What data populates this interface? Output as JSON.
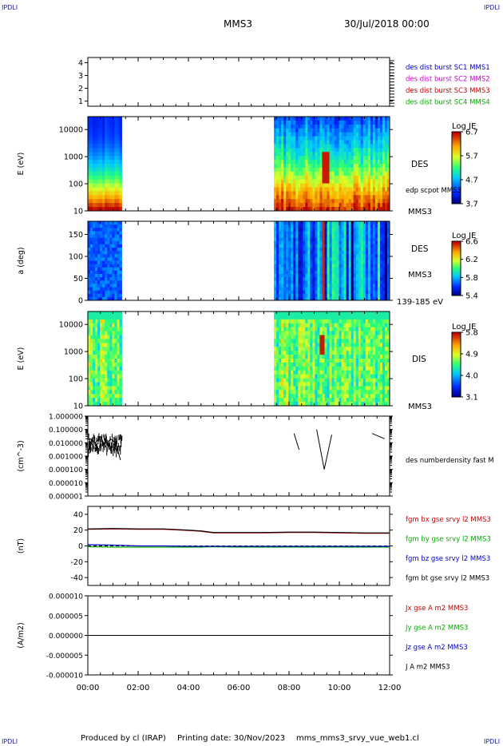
{
  "header": {
    "corner_label": "IPDLI",
    "spacecraft": "MMS3",
    "date": "30/Jul/2018 00:00"
  },
  "footer": {
    "produced_by": "Produced by cl (IRAP)",
    "printing_date": "Printing date: 30/Nov/2023",
    "file": "mms_mms3_srvy_vue_web1.cl"
  },
  "colors": {
    "red": "#cc0000",
    "magenta": "#cc00cc",
    "blue": "#0000cc",
    "green": "#00aa00",
    "black": "#000000"
  },
  "chart_data": [
    {
      "type": "line",
      "panel": "burst-availability",
      "yticks": [
        "4",
        "3",
        "2",
        "1"
      ],
      "ylim": [
        0.6,
        4.4
      ],
      "legend": [
        {
          "label": "des dist burst SC1 MMS1",
          "color": "#0000cc"
        },
        {
          "label": "des dist burst SC2 MMS2",
          "color": "#cc00cc"
        },
        {
          "label": "des dist burst SC3 MMS3",
          "color": "#cc0000"
        },
        {
          "label": "des dist burst SC4 MMS4",
          "color": "#00aa00"
        }
      ]
    },
    {
      "type": "heatmap",
      "panel": "des-energy",
      "ylabel": "E (eV)",
      "yticks": [
        "10000",
        "1000",
        "100",
        "10"
      ],
      "scale": "log",
      "ylim": [
        10,
        30000
      ],
      "data_intervals_hours": [
        [
          0,
          1.35
        ],
        [
          7.4,
          12
        ]
      ],
      "right_labels": [
        "DES",
        "edp scpot MMS3",
        "MMS3"
      ],
      "colorbar": {
        "title": "Log JE",
        "ticks": [
          "6.7",
          "5.7",
          "4.7",
          "3.7"
        ],
        "range": [
          3.7,
          6.7
        ]
      }
    },
    {
      "type": "heatmap",
      "panel": "des-pitch-angle",
      "ylabel": "a (deg)",
      "yticks": [
        "150",
        "100",
        "50",
        "0"
      ],
      "ylim": [
        0,
        180
      ],
      "data_intervals_hours": [
        [
          0,
          1.35
        ],
        [
          7.4,
          12
        ]
      ],
      "right_labels": [
        "DES",
        "MMS3",
        "139-185 eV"
      ],
      "colorbar": {
        "title": "Log JE",
        "ticks": [
          "6.6",
          "6.2",
          "5.8",
          "5.4"
        ],
        "range": [
          5.4,
          6.6
        ]
      }
    },
    {
      "type": "heatmap",
      "panel": "dis-energy",
      "ylabel": "E (eV)",
      "yticks": [
        "10000",
        "1000",
        "100",
        "10"
      ],
      "scale": "log",
      "ylim": [
        10,
        30000
      ],
      "data_intervals_hours": [
        [
          0,
          1.35
        ],
        [
          7.4,
          12
        ]
      ],
      "right_labels": [
        "DIS",
        "MMS3"
      ],
      "colorbar": {
        "title": "Log JE",
        "ticks": [
          "5.8",
          "4.9",
          "4.0",
          "3.1"
        ],
        "range": [
          3.1,
          5.8
        ]
      }
    },
    {
      "type": "line",
      "panel": "number-density",
      "ylabel": "(cm^-3)",
      "yticks": [
        "1.000000",
        "0.100000",
        "0.010000",
        "0.001000",
        "0.000100",
        "0.000010",
        "0.000001"
      ],
      "scale": "log",
      "ylim": [
        1e-06,
        1
      ],
      "legend": [
        {
          "label": "des numberdensity fast M",
          "color": "#000000"
        }
      ],
      "series": [
        {
          "name": "des numberdensity fast M",
          "x": [
            0.1,
            0.3,
            0.5,
            0.7,
            0.9,
            1.1,
            1.3,
            7.5,
            8.2,
            8.4,
            9.1,
            9.4,
            9.7,
            10.6,
            11.3,
            11.8
          ],
          "y": [
            0.02,
            0.01,
            0.03,
            0.005,
            0.02,
            0.01,
            0.0005,
            0.002,
            0.05,
            0.003,
            0.1,
            0.0001,
            0.04,
            0.002,
            0.05,
            0.02
          ]
        }
      ]
    },
    {
      "type": "line",
      "panel": "magnetic-field",
      "ylabel": "(nT)",
      "yticks": [
        "40",
        "20",
        "0",
        "-20",
        "-40"
      ],
      "ylim": [
        -50,
        50
      ],
      "legend": [
        {
          "label": "fgm bx gse srvy l2 MMS3",
          "color": "#cc0000"
        },
        {
          "label": "fgm by gse srvy l2 MMS3",
          "color": "#00aa00"
        },
        {
          "label": "fgm bz gse srvy l2 MMS3",
          "color": "#0000cc"
        },
        {
          "label": "fgm bt gse srvy l2 MMS3",
          "color": "#000000"
        }
      ],
      "x": [
        0,
        1,
        2,
        3,
        4,
        4.5,
        5,
        6,
        7,
        8,
        9,
        10,
        11,
        12
      ],
      "series": [
        {
          "name": "fgm bx gse srvy l2 MMS3",
          "values": [
            21,
            21.5,
            21,
            21,
            19.5,
            18.5,
            16.5,
            16.5,
            16.5,
            17,
            17,
            16.5,
            16,
            16
          ]
        },
        {
          "name": "fgm by gse srvy l2 MMS3",
          "values": [
            -1,
            -1.5,
            -1.5,
            -1.5,
            -1.5,
            -1.5,
            -1,
            -1.5,
            -1.5,
            -1.5,
            -1.5,
            -1.5,
            -1.5,
            -1.5
          ]
        },
        {
          "name": "fgm bz gse srvy l2 MMS3",
          "values": [
            1.5,
            1,
            0,
            0,
            -0.5,
            -0.5,
            -0.5,
            -0.5,
            -0.5,
            -0.5,
            -0.5,
            -0.5,
            -0.5,
            -0.5
          ]
        },
        {
          "name": "fgm bt gse srvy l2 MMS3",
          "values": [
            21.5,
            22,
            21.5,
            21.5,
            20,
            19,
            17,
            17,
            17,
            17.5,
            17.5,
            17,
            16.5,
            16.5
          ]
        }
      ]
    },
    {
      "type": "line",
      "panel": "current-density",
      "ylabel": "(A/m2)",
      "yticks": [
        "0.000010",
        "0.000005",
        "0.000000",
        "-0.000005",
        "-0.000010"
      ],
      "ylim": [
        -1e-05,
        1e-05
      ],
      "legend": [
        {
          "label": "Jx gse A m2 MMS3",
          "color": "#cc0000"
        },
        {
          "label": "Jy gse A m2 MMS3",
          "color": "#00aa00"
        },
        {
          "label": "Jz gse A m2 MMS3",
          "color": "#0000cc"
        },
        {
          "label": "J A m2 MMS3",
          "color": "#000000"
        }
      ],
      "x": [
        0,
        12
      ],
      "series": [
        {
          "name": "J A m2 MMS3",
          "values": [
            0,
            0
          ]
        }
      ]
    }
  ],
  "xaxis": {
    "ticks": [
      "00:00",
      "02:00",
      "04:00",
      "06:00",
      "08:00",
      "10:00",
      "12:00"
    ],
    "range_hours": [
      0,
      12
    ]
  }
}
